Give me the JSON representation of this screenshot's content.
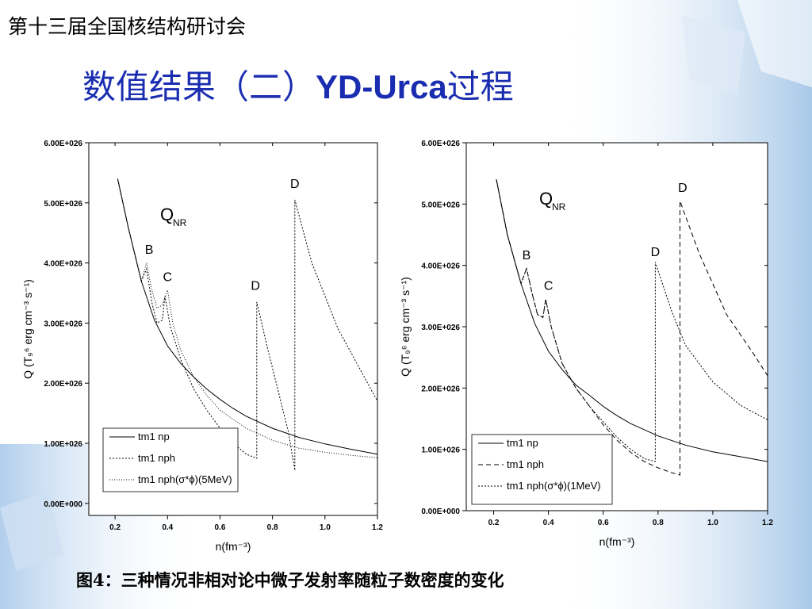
{
  "slide": {
    "conference": "第十三届全国核结构研讨会",
    "title_pre": "数值结果（二）",
    "title_bold": "YD-Urca",
    "title_post": "过程",
    "caption": "图4：三种情况非相对论中微子发射率随粒子数密度的变化"
  },
  "colors": {
    "title": "#1a2db0",
    "background_accent": "#b8d3ec"
  },
  "chart_data": [
    {
      "type": "line",
      "xlabel": "n(fm⁻³)",
      "ylabel": "Q (T₉⁶ erg cm⁻³ s⁻¹)",
      "xlim": [
        0.1,
        1.2
      ],
      "ylim": [
        -2e+25,
        6e+26
      ],
      "xticks": [
        "0.2",
        "0.4",
        "0.6",
        "0.8",
        "1.0",
        "1.2"
      ],
      "yticks": [
        "0.00E+000",
        "1.00E+026",
        "2.00E+026",
        "3.00E+026",
        "4.00E+026",
        "5.00E+026",
        "6.00E+026"
      ],
      "annotation_main": "Q",
      "annotation_sub": "NR",
      "legend_position": "bottom-left",
      "series": [
        {
          "name": "tm1 np",
          "style": "solid",
          "x": [
            0.21,
            0.25,
            0.3,
            0.35,
            0.4,
            0.45,
            0.5,
            0.55,
            0.6,
            0.65,
            0.7,
            0.8,
            0.9,
            1.0,
            1.1,
            1.2
          ],
          "y": [
            5.4e+26,
            4.6e+26,
            3.7e+26,
            3.05e+26,
            2.62e+26,
            2.33e+26,
            2.1e+26,
            1.9e+26,
            1.73e+26,
            1.58e+26,
            1.45e+26,
            1.25e+26,
            1.1e+26,
            9.9e+25,
            9e+25,
            8.2e+25
          ]
        },
        {
          "name": "tm1 nph",
          "style": "dotted",
          "x": [
            0.21,
            0.25,
            0.3,
            0.32,
            0.34,
            0.36,
            0.38,
            0.39,
            0.41,
            0.45,
            0.5,
            0.55,
            0.6,
            0.65,
            0.7,
            0.74,
            0.74,
            0.78,
            0.82,
            0.86,
            0.885,
            0.885,
            0.95,
            1.05,
            1.15,
            1.2
          ],
          "y": [
            5.4e+26,
            4.6e+26,
            3.7e+26,
            3.9e+26,
            3.35e+26,
            3e+26,
            3.05e+26,
            3.45e+26,
            2.95e+26,
            2.4e+26,
            1.9e+26,
            1.55e+26,
            1.25e+26,
            1e+26,
            8.2e+25,
            7.5e+25,
            3.35e+26,
            2.6e+26,
            1.9e+26,
            1.2e+26,
            5.5e+25,
            5.05e+26,
            4e+26,
            2.9e+26,
            2.1e+26,
            1.7e+26
          ]
        },
        {
          "name": "tm1 nph(σ*ϕ)(5MeV)",
          "style": "finedot",
          "x": [
            0.21,
            0.25,
            0.3,
            0.32,
            0.34,
            0.36,
            0.38,
            0.4,
            0.42,
            0.45,
            0.5,
            0.55,
            0.6,
            0.7,
            0.8,
            0.9,
            1.0,
            1.1,
            1.2
          ],
          "y": [
            5.4e+26,
            4.6e+26,
            3.7e+26,
            4e+26,
            3.55e+26,
            3.25e+26,
            3.3e+26,
            3.55e+26,
            3e+26,
            2.55e+26,
            2.1e+26,
            1.8e+26,
            1.55e+26,
            1.25e+26,
            1.05e+26,
            9.2e+25,
            8.5e+25,
            8e+25,
            7.6e+25
          ]
        }
      ],
      "labels": [
        {
          "text": "B",
          "x": 0.33,
          "y": 4.15e+26
        },
        {
          "text": "C",
          "x": 0.4,
          "y": 3.7e+26
        },
        {
          "text": "D",
          "x": 0.735,
          "y": 3.55e+26
        },
        {
          "text": "D",
          "x": 0.885,
          "y": 5.25e+26
        }
      ]
    },
    {
      "type": "line",
      "xlabel": "n(fm⁻³)",
      "ylabel": "Q (T₉⁶ erg cm⁻³ s⁻¹)",
      "xlim": [
        0.1,
        1.2
      ],
      "ylim": [
        0.0,
        6e+26
      ],
      "xticks": [
        "0.2",
        "0.4",
        "0.6",
        "0.8",
        "1.0",
        "1.2"
      ],
      "yticks": [
        "0.00E+000",
        "1.00E+026",
        "2.00E+026",
        "3.00E+026",
        "4.00E+026",
        "5.00E+026",
        "6.00E+026"
      ],
      "annotation_main": "Q",
      "annotation_sub": "NR",
      "legend_position": "bottom-left",
      "series": [
        {
          "name": "tm1 np",
          "style": "solid",
          "x": [
            0.21,
            0.25,
            0.3,
            0.35,
            0.4,
            0.45,
            0.5,
            0.55,
            0.6,
            0.65,
            0.7,
            0.8,
            0.9,
            1.0,
            1.1,
            1.2
          ],
          "y": [
            5.4e+26,
            4.5e+26,
            3.7e+26,
            3.05e+26,
            2.6e+26,
            2.3e+26,
            2.05e+26,
            1.88e+26,
            1.7e+26,
            1.55e+26,
            1.42e+26,
            1.22e+26,
            1.07e+26,
            9.6e+25,
            8.8e+25,
            8e+25
          ]
        },
        {
          "name": "tm1 nph",
          "style": "dashed",
          "x": [
            0.21,
            0.25,
            0.3,
            0.32,
            0.34,
            0.36,
            0.38,
            0.39,
            0.41,
            0.45,
            0.5,
            0.55,
            0.6,
            0.65,
            0.7,
            0.75,
            0.8,
            0.85,
            0.88,
            0.88,
            0.95,
            1.05,
            1.15,
            1.2
          ],
          "y": [
            5.4e+26,
            4.5e+26,
            3.7e+26,
            3.95e+26,
            3.55e+26,
            3.2e+26,
            3.15e+26,
            3.45e+26,
            3e+26,
            2.4e+26,
            2e+26,
            1.7e+26,
            1.4e+26,
            1.15e+26,
            9.5e+25,
            8e+25,
            7e+25,
            6.2e+25,
            5.8e+25,
            5.05e+26,
            4.2e+26,
            3.2e+26,
            2.55e+26,
            2.2e+26
          ]
        },
        {
          "name": "tm1 nph(σ*ϕ)(1MeV)",
          "style": "dotted",
          "x": [
            0.21,
            0.25,
            0.3,
            0.32,
            0.34,
            0.36,
            0.38,
            0.39,
            0.41,
            0.45,
            0.5,
            0.55,
            0.6,
            0.65,
            0.7,
            0.75,
            0.79,
            0.79,
            0.85,
            0.9,
            1.0,
            1.1,
            1.2
          ],
          "y": [
            5.4e+26,
            4.5e+26,
            3.7e+26,
            3.95e+26,
            3.55e+26,
            3.2e+26,
            3.15e+26,
            3.45e+26,
            3e+26,
            2.4e+26,
            2e+26,
            1.7e+26,
            1.45e+26,
            1.2e+26,
            1e+26,
            8.5e+25,
            8e+25,
            4.05e+26,
            3.25e+26,
            2.7e+26,
            2.1e+26,
            1.72e+26,
            1.48e+26
          ]
        }
      ],
      "labels": [
        {
          "text": "B",
          "x": 0.32,
          "y": 4.1e+26
        },
        {
          "text": "C",
          "x": 0.4,
          "y": 3.6e+26
        },
        {
          "text": "D",
          "x": 0.79,
          "y": 4.15e+26
        },
        {
          "text": "D",
          "x": 0.89,
          "y": 5.2e+26
        }
      ]
    }
  ]
}
